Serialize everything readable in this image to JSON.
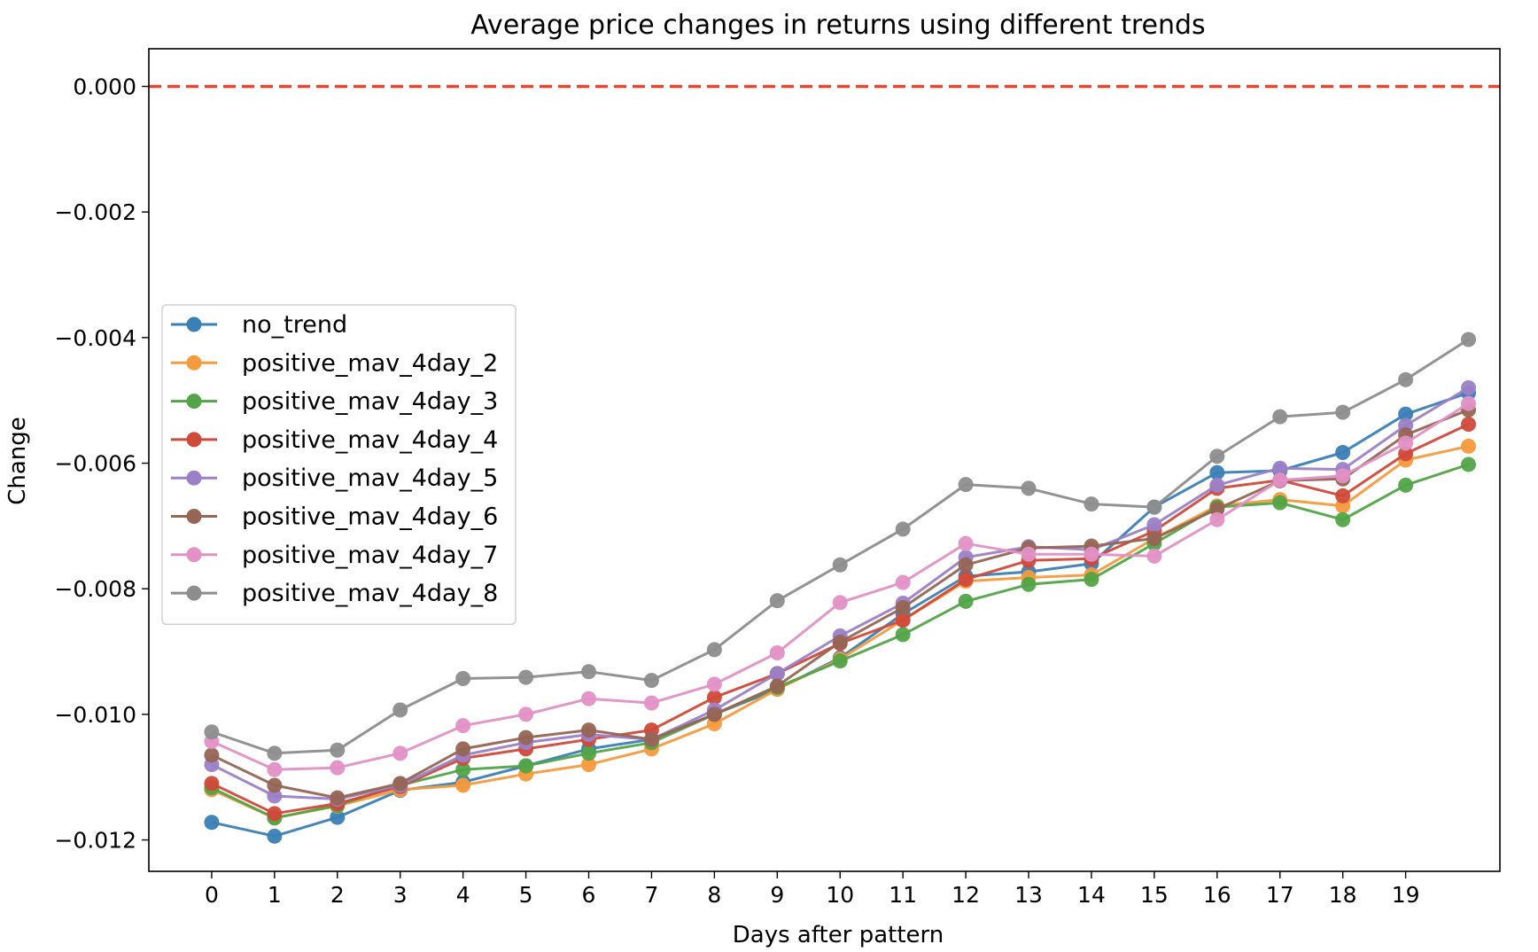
{
  "chart_data": {
    "type": "line",
    "title": "Average price changes in returns using different trends",
    "xlabel": "Days after pattern",
    "ylabel": "Change",
    "x_ticks": [
      0,
      1,
      2,
      3,
      4,
      5,
      6,
      7,
      8,
      9,
      10,
      11,
      12,
      13,
      14,
      15,
      16,
      17,
      18,
      19
    ],
    "y_ticks": [
      0.0,
      -0.002,
      -0.004,
      -0.006,
      -0.008,
      -0.01,
      -0.012
    ],
    "y_tick_labels": [
      "0.000",
      "−0.002",
      "−0.004",
      "−0.006",
      "−0.008",
      "−0.010",
      "−0.012"
    ],
    "xlim": [
      -1,
      20.5
    ],
    "ylim": [
      -0.0125,
      0.0006
    ],
    "grid": false,
    "legend_position": "center-left",
    "reference_line": {
      "y": 0.0,
      "color": "#e8452c",
      "style": "dashed"
    },
    "x": [
      0,
      1,
      2,
      3,
      4,
      5,
      6,
      7,
      8,
      9,
      10,
      11,
      12,
      13,
      14,
      15,
      16,
      17,
      18,
      19,
      20
    ],
    "series": [
      {
        "name": "no_trend",
        "color": "#3a7fb5",
        "values": [
          -0.01172,
          -0.01194,
          -0.01164,
          -0.01121,
          -0.01108,
          -0.01082,
          -0.01055,
          -0.0104,
          -0.01,
          -0.0096,
          -0.0091,
          -0.0084,
          -0.0078,
          -0.00773,
          -0.0076,
          -0.0067,
          -0.00615,
          -0.00612,
          -0.00583,
          -0.00522,
          -0.00488
        ]
      },
      {
        "name": "positive_mav_4day_2",
        "color": "#f59a3d",
        "values": [
          -0.0112,
          -0.01165,
          -0.01146,
          -0.0112,
          -0.01113,
          -0.01095,
          -0.0108,
          -0.01055,
          -0.01015,
          -0.0096,
          -0.00912,
          -0.0085,
          -0.00788,
          -0.00782,
          -0.00778,
          -0.0072,
          -0.00668,
          -0.00658,
          -0.00668,
          -0.00595,
          -0.00573
        ]
      },
      {
        "name": "positive_mav_4day_3",
        "color": "#52a447",
        "values": [
          -0.01117,
          -0.01165,
          -0.01145,
          -0.01113,
          -0.01088,
          -0.01082,
          -0.01062,
          -0.01045,
          -0.01,
          -0.00957,
          -0.00915,
          -0.00873,
          -0.0082,
          -0.00793,
          -0.00785,
          -0.00728,
          -0.0067,
          -0.00663,
          -0.0069,
          -0.00635,
          -0.00602
        ]
      },
      {
        "name": "positive_mav_4day_4",
        "color": "#d04a3a",
        "values": [
          -0.0111,
          -0.01158,
          -0.01142,
          -0.01115,
          -0.0107,
          -0.01055,
          -0.0104,
          -0.01025,
          -0.00973,
          -0.00935,
          -0.00887,
          -0.0085,
          -0.00785,
          -0.00755,
          -0.00752,
          -0.00708,
          -0.0064,
          -0.00627,
          -0.00652,
          -0.00585,
          -0.00538
        ]
      },
      {
        "name": "positive_mav_4day_5",
        "color": "#9b7fc7",
        "values": [
          -0.0108,
          -0.0113,
          -0.01135,
          -0.01113,
          -0.01065,
          -0.01045,
          -0.01032,
          -0.0104,
          -0.00993,
          -0.00935,
          -0.00875,
          -0.00823,
          -0.0075,
          -0.00733,
          -0.00738,
          -0.00698,
          -0.00635,
          -0.00608,
          -0.0061,
          -0.0054,
          -0.0048
        ]
      },
      {
        "name": "positive_mav_4day_6",
        "color": "#966554",
        "values": [
          -0.01065,
          -0.01113,
          -0.01133,
          -0.0111,
          -0.01055,
          -0.01037,
          -0.01025,
          -0.0104,
          -0.01,
          -0.00955,
          -0.00885,
          -0.0083,
          -0.00762,
          -0.00735,
          -0.00732,
          -0.0072,
          -0.00673,
          -0.00628,
          -0.00625,
          -0.00555,
          -0.00515
        ]
      },
      {
        "name": "positive_mav_4day_7",
        "color": "#e291c6",
        "values": [
          -0.01043,
          -0.01088,
          -0.01085,
          -0.01062,
          -0.01018,
          -0.01,
          -0.00975,
          -0.00982,
          -0.00952,
          -0.00902,
          -0.00822,
          -0.0079,
          -0.00728,
          -0.00745,
          -0.00745,
          -0.00748,
          -0.0069,
          -0.00627,
          -0.0062,
          -0.00568,
          -0.00505
        ]
      },
      {
        "name": "positive_mav_4day_8",
        "color": "#8d8d8d",
        "values": [
          -0.01028,
          -0.01062,
          -0.01057,
          -0.00993,
          -0.00943,
          -0.00941,
          -0.00932,
          -0.00946,
          -0.00897,
          -0.00819,
          -0.00762,
          -0.00705,
          -0.00634,
          -0.0064,
          -0.00665,
          -0.0067,
          -0.00589,
          -0.00526,
          -0.00519,
          -0.00467,
          -0.00403
        ]
      }
    ]
  }
}
